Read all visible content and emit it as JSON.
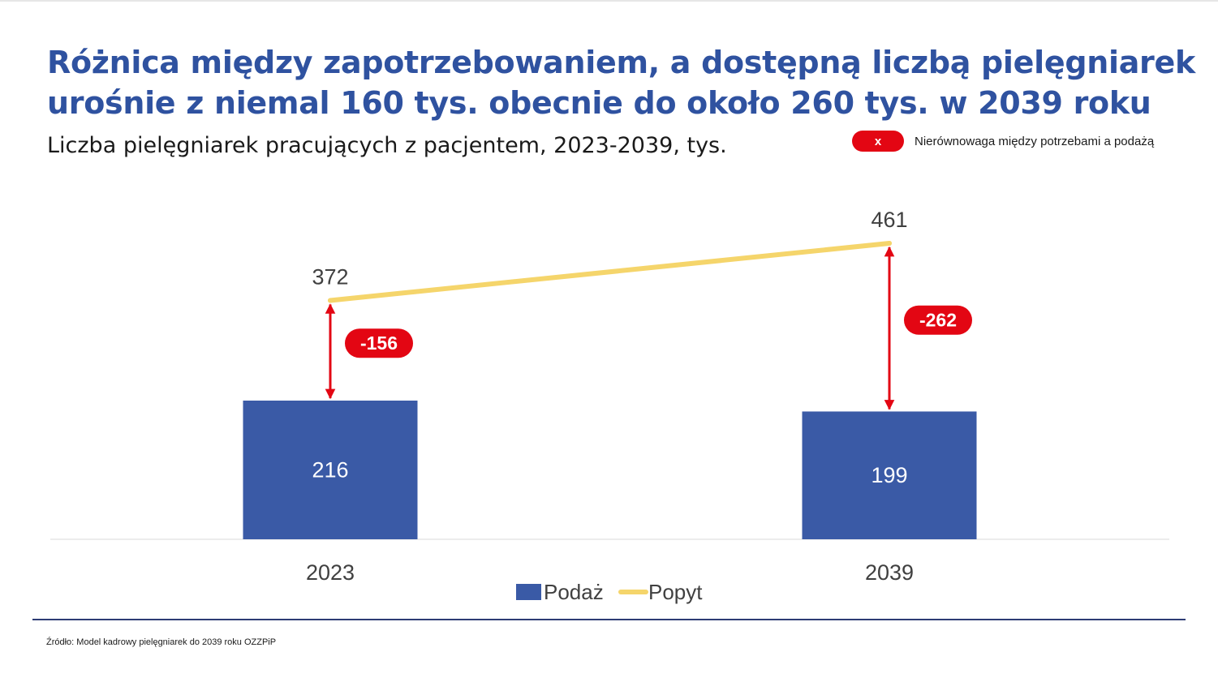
{
  "title": {
    "line1": "Różnica między zapotrzebowaniem, a dostępną liczbą pielęgniarek",
    "line2": "urośnie z niemal 160 tys. obecnie do około 260 tys. w 2039 roku"
  },
  "subtitle": "Liczba pielęgniarek pracujących z pacjentem, 2023-2039, tys.",
  "imbalance_legend": {
    "symbol": "x",
    "label": "Nierównowaga między potrzebami a podażą"
  },
  "chart_data": {
    "type": "bar",
    "categories": [
      "2023",
      "2039"
    ],
    "series": [
      {
        "name": "Podaż",
        "kind": "bar",
        "values": [
          216,
          199
        ]
      },
      {
        "name": "Popyt",
        "kind": "line",
        "values": [
          372,
          461
        ]
      }
    ],
    "gaps": [
      "-156",
      "-262"
    ],
    "ylim": [
      0,
      461
    ],
    "colors": {
      "supply": "#3a5aa6",
      "demand": "#f5d56b",
      "gap": "#e30613"
    },
    "legend": [
      "Podaż",
      "Popyt"
    ],
    "legend_position": "bottom"
  },
  "source": "Źródło: Model kadrowy pielęgniarek do 2039 roku OZZPiP"
}
